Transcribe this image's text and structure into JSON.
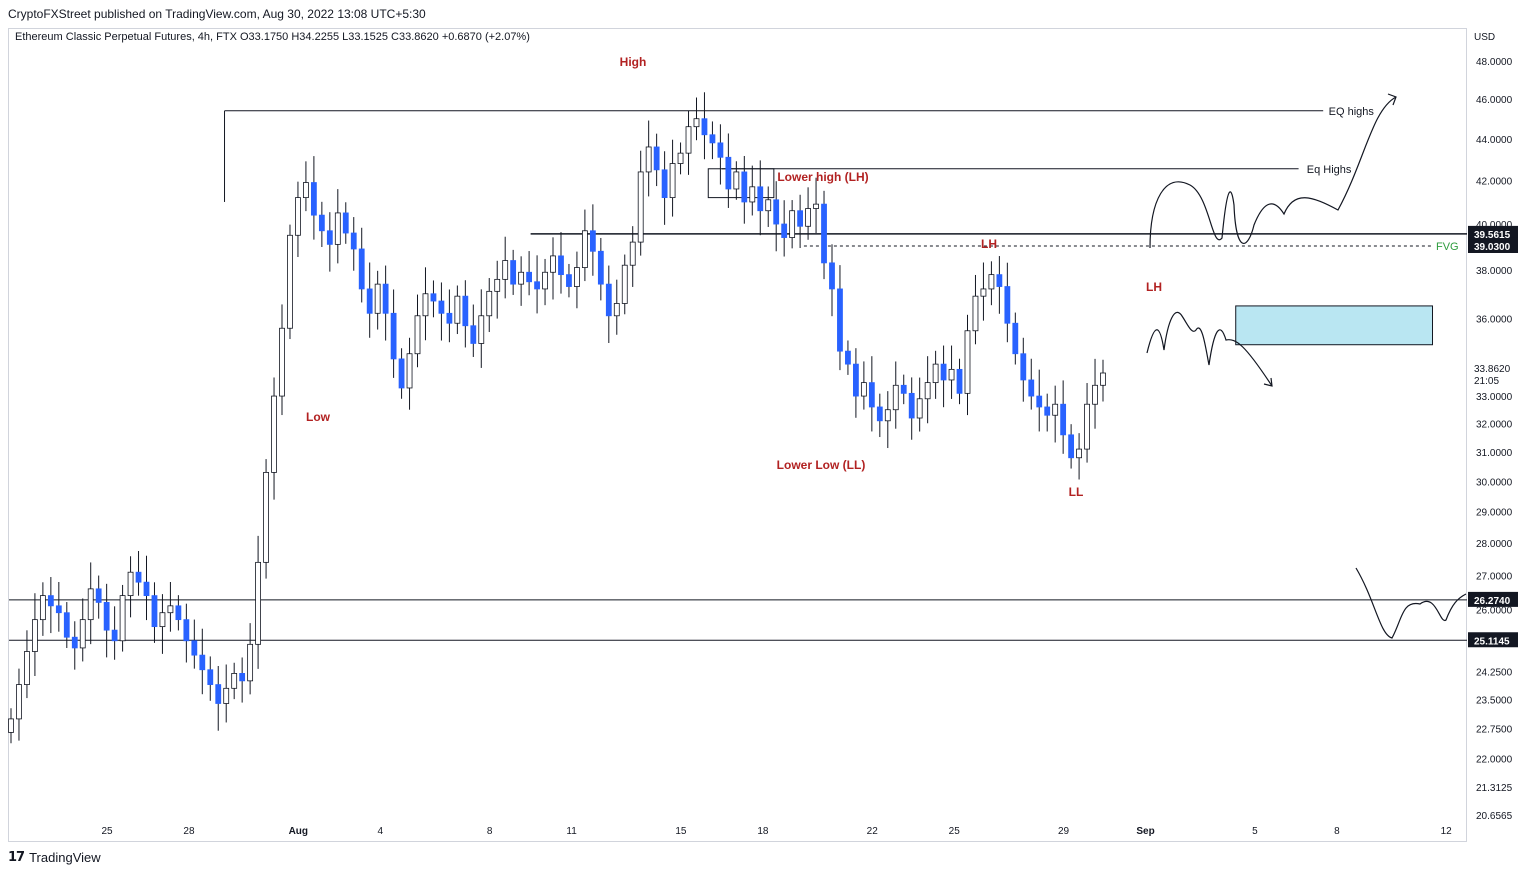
{
  "header": {
    "publisher": "CryptoFXStreet published on TradingView.com, Aug 30, 2022 13:08 UTC+5:30",
    "symbol_line": "Ethereum Classic Perpetual Futures, 4h, FTX  O33.1750  H34.2255  L33.1525  C33.8620  +0.6870 (+2.07%)"
  },
  "footer": {
    "brand": "TradingView",
    "logo_glyph": "17"
  },
  "colors": {
    "up": "#ffffff",
    "down": "#2962ff",
    "wick": "#131722",
    "fvg_box": "#b9e6f2",
    "fvg_text": "#2e9c3e",
    "label_red": "#b22222"
  },
  "chart_data": {
    "type": "candlestick",
    "symbol": "Ethereum Classic Perpetual Futures",
    "timeframe": "4h",
    "exchange": "FTX",
    "ohlc": {
      "open": 33.175,
      "high": 34.2255,
      "low": 33.1525,
      "close": 33.862,
      "change": 0.687,
      "change_pct": 2.07
    },
    "currency": "USD",
    "y_scale": "log",
    "ylim": [
      20.6565,
      50.2
    ],
    "y_ticks": [
      "48.0000",
      "46.0000",
      "44.0000",
      "42.0000",
      "40.0000",
      "38.0000",
      "36.0000",
      "33.0000",
      "32.0000",
      "31.0000",
      "30.0000",
      "29.0000",
      "28.0000",
      "27.0000",
      "26.0000",
      "24.2500",
      "23.5000",
      "22.7500",
      "22.0000",
      "21.3125",
      "20.6565"
    ],
    "x_ticks": [
      "25",
      "28",
      "Aug",
      "4",
      "8",
      "11",
      "15",
      "18",
      "22",
      "25",
      "29",
      "Sep",
      "5",
      "8",
      "12"
    ],
    "price_badges": [
      {
        "label": "39.5615",
        "value": 39.5615
      },
      {
        "label": "39.0300",
        "value": 39.03
      },
      {
        "label": "26.2740",
        "value": 26.274
      },
      {
        "label": "25.1145",
        "value": 25.1145
      }
    ],
    "last_price": {
      "label": "33.8620",
      "countdown": "21:05",
      "value": 33.862
    },
    "key_points": [
      {
        "label": "Low",
        "date": "2022-08-02",
        "price": 32.6
      },
      {
        "label": "High",
        "date": "2022-08-12",
        "price": 45.85
      },
      {
        "label": "Lower high (LH)",
        "date": "2022-08-17",
        "price": 42.6
      },
      {
        "label": "Lower Low (LL)",
        "date": "2022-08-20",
        "price": 31.2
      },
      {
        "label": "LH",
        "date": "2022-08-25",
        "price": 38.5
      },
      {
        "label": "LL",
        "date": "2022-08-29",
        "price": 30.35
      }
    ],
    "horizontal_levels": [
      {
        "name": "EQ highs",
        "value": 45.4
      },
      {
        "name": "Eq Highs",
        "value": 42.55
      },
      {
        "name": "39.5615",
        "value": 39.5615
      },
      {
        "name": "FVG",
        "value": 39.03
      },
      {
        "name": "26.2740",
        "value": 26.274
      },
      {
        "name": "25.1145",
        "value": 25.1145
      }
    ],
    "annotations": [
      {
        "text": "High",
        "type": "label"
      },
      {
        "text": "Low",
        "type": "label"
      },
      {
        "text": "Lower high (LH)",
        "type": "label"
      },
      {
        "text": "Lower Low (LL)",
        "type": "label"
      },
      {
        "text": "LH",
        "type": "label"
      },
      {
        "text": "LL",
        "type": "label"
      },
      {
        "text": "LH",
        "type": "label"
      },
      {
        "text": "EQ highs",
        "type": "line-label"
      },
      {
        "text": "Eq Highs",
        "type": "line-label"
      },
      {
        "text": "FVG",
        "type": "line-label"
      }
    ],
    "supply_zone": {
      "top": 36.5,
      "bottom": 34.95
    },
    "closes": [
      23.0,
      23.9,
      24.8,
      25.7,
      26.4,
      26.1,
      25.9,
      25.2,
      24.9,
      25.7,
      26.6,
      26.2,
      25.4,
      25.1,
      26.4,
      27.1,
      26.8,
      26.4,
      25.5,
      25.9,
      26.1,
      25.7,
      25.1,
      24.7,
      24.3,
      23.9,
      23.4,
      23.8,
      24.2,
      24.0,
      25.0,
      27.4,
      30.3,
      33.0,
      35.6,
      39.5,
      41.2,
      41.9,
      40.4,
      39.7,
      39.1,
      40.5,
      39.6,
      38.9,
      37.2,
      36.2,
      37.4,
      36.2,
      34.4,
      33.3,
      34.6,
      36.1,
      37.0,
      36.7,
      36.2,
      35.8,
      36.9,
      35.7,
      35.0,
      36.1,
      37.1,
      37.6,
      38.4,
      37.4,
      37.9,
      37.5,
      37.2,
      37.9,
      38.6,
      37.8,
      37.3,
      38.1,
      39.7,
      38.8,
      37.4,
      36.1,
      36.6,
      38.2,
      39.2,
      42.4,
      43.6,
      42.5,
      41.2,
      42.8,
      43.3,
      44.6,
      45.0,
      44.2,
      43.8,
      43.1,
      41.6,
      42.4,
      41.0,
      41.7,
      40.6,
      41.1,
      40.0,
      39.4,
      40.6,
      39.9,
      40.7,
      40.9,
      38.3,
      37.2,
      34.7,
      34.2,
      33.0,
      33.5,
      32.6,
      32.1,
      32.5,
      33.4,
      33.1,
      32.2,
      32.9,
      33.5,
      34.2,
      33.6,
      34.0,
      33.1,
      35.5,
      36.9,
      37.2,
      37.8,
      37.3,
      35.8,
      34.6,
      33.6,
      33.0,
      32.6,
      32.3,
      32.7,
      31.6,
      30.8,
      31.1,
      32.7,
      33.4,
      33.862
    ]
  }
}
